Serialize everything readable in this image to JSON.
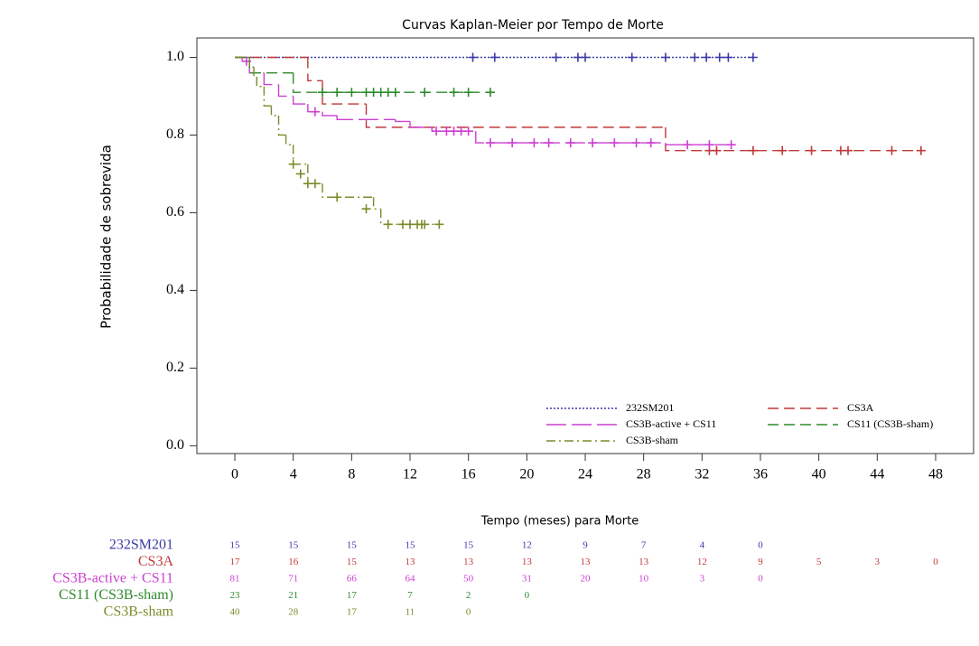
{
  "chart_data": {
    "type": "kaplan-meier",
    "title": "Curvas Kaplan-Meier por Tempo de Morte",
    "x_label": "Tempo (meses) para Morte",
    "y_label": "Probabilidade de sobrevida",
    "xlim": [
      -2.6,
      50.6
    ],
    "ylim": [
      -0.02,
      1.05
    ],
    "xticks": [
      0,
      4,
      8,
      12,
      16,
      20,
      24,
      28,
      32,
      36,
      40,
      44,
      48
    ],
    "yticks": [
      {
        "value": 0,
        "label": "0.0"
      },
      0.2,
      0.4,
      0.6,
      0.8,
      {
        "value": 1,
        "label": "1.0"
      }
    ],
    "series": [
      {
        "name": "232SM201",
        "color": "#3a3aa8",
        "line_style": "dotted",
        "times": [
          0,
          35.5
        ],
        "values": [
          1,
          1
        ],
        "censor_times": [
          16.3,
          17.8,
          22,
          23.5,
          24,
          27.2,
          29.5,
          31.5,
          32.3,
          33.2,
          33.8,
          35.5
        ],
        "censor_values": [
          1,
          1,
          1,
          1,
          1,
          1,
          1,
          1,
          1,
          1,
          1,
          1
        ],
        "at_risk": [
          15,
          15,
          15,
          15,
          15,
          12,
          9,
          7,
          4,
          0
        ]
      },
      {
        "name": "CS3A",
        "color": "#c0393b",
        "line_style": "dashed",
        "times": [
          0,
          5,
          6,
          9,
          29.5,
          47
        ],
        "values": [
          1,
          0.94,
          0.88,
          0.82,
          0.76,
          0.76
        ],
        "censor_times": [
          32.5,
          33,
          35.5,
          37.5,
          39.5,
          41.5,
          42,
          45,
          47
        ],
        "censor_values": [
          0.76,
          0.76,
          0.76,
          0.76,
          0.76,
          0.76,
          0.76,
          0.76,
          0.76
        ],
        "at_risk": [
          17,
          16,
          15,
          13,
          13,
          13,
          13,
          13,
          12,
          9,
          5,
          3,
          0
        ]
      },
      {
        "name": "CS3B-active + CS11",
        "color": "#cc3fd0",
        "line_style": "longdash",
        "times": [
          0,
          0.5,
          1,
          2,
          3,
          4,
          5,
          6,
          7,
          11,
          12,
          13.5,
          16.5,
          29.5,
          34.5
        ],
        "values": [
          1,
          0.99,
          0.96,
          0.93,
          0.9,
          0.88,
          0.86,
          0.85,
          0.84,
          0.835,
          0.82,
          0.81,
          0.78,
          0.775,
          0.775
        ],
        "censor_times": [
          0.8,
          5.5,
          13.8,
          14.5,
          15,
          15.5,
          16,
          17.5,
          19,
          20.5,
          21.5,
          23,
          24.5,
          26,
          27.5,
          28.5,
          31,
          32.5,
          34
        ],
        "censor_values": [
          0.99,
          0.86,
          0.81,
          0.81,
          0.81,
          0.81,
          0.81,
          0.78,
          0.78,
          0.78,
          0.78,
          0.78,
          0.78,
          0.78,
          0.78,
          0.78,
          0.775,
          0.775,
          0.775
        ],
        "at_risk": [
          81,
          71,
          66,
          64,
          50,
          31,
          20,
          10,
          3,
          0
        ]
      },
      {
        "name": "CS11 (CS3B-sham)",
        "color": "#2e8b2e",
        "line_style": "dashed",
        "times": [
          0,
          1,
          4,
          17.5
        ],
        "values": [
          1,
          0.96,
          0.91,
          0.91
        ],
        "censor_times": [
          6,
          7,
          8,
          9,
          9.5,
          10,
          10.5,
          11,
          13,
          15,
          16,
          17.5
        ],
        "censor_values": [
          0.91,
          0.91,
          0.91,
          0.91,
          0.91,
          0.91,
          0.91,
          0.91,
          0.91,
          0.91,
          0.91,
          0.91
        ],
        "at_risk": [
          23,
          21,
          17,
          7,
          2,
          0
        ]
      },
      {
        "name": "CS3B-sham",
        "color": "#7e8a2a",
        "line_style": "dashdot",
        "times": [
          0,
          1,
          1.3,
          1.5,
          2,
          2.5,
          3,
          3.5,
          4,
          5,
          6,
          9.5,
          10,
          14
        ],
        "values": [
          1,
          0.975,
          0.95,
          0.925,
          0.875,
          0.85,
          0.8,
          0.775,
          0.725,
          0.675,
          0.64,
          0.61,
          0.57,
          0.57
        ],
        "censor_times": [
          4,
          4.5,
          5,
          5.5,
          7,
          9,
          10.5,
          11.5,
          12,
          12.5,
          12.8,
          13,
          14
        ],
        "censor_values": [
          0.725,
          0.7,
          0.675,
          0.675,
          0.64,
          0.61,
          0.57,
          0.57,
          0.57,
          0.57,
          0.57,
          0.57,
          0.57
        ],
        "at_risk": [
          40,
          28,
          17,
          11,
          0
        ]
      }
    ]
  }
}
